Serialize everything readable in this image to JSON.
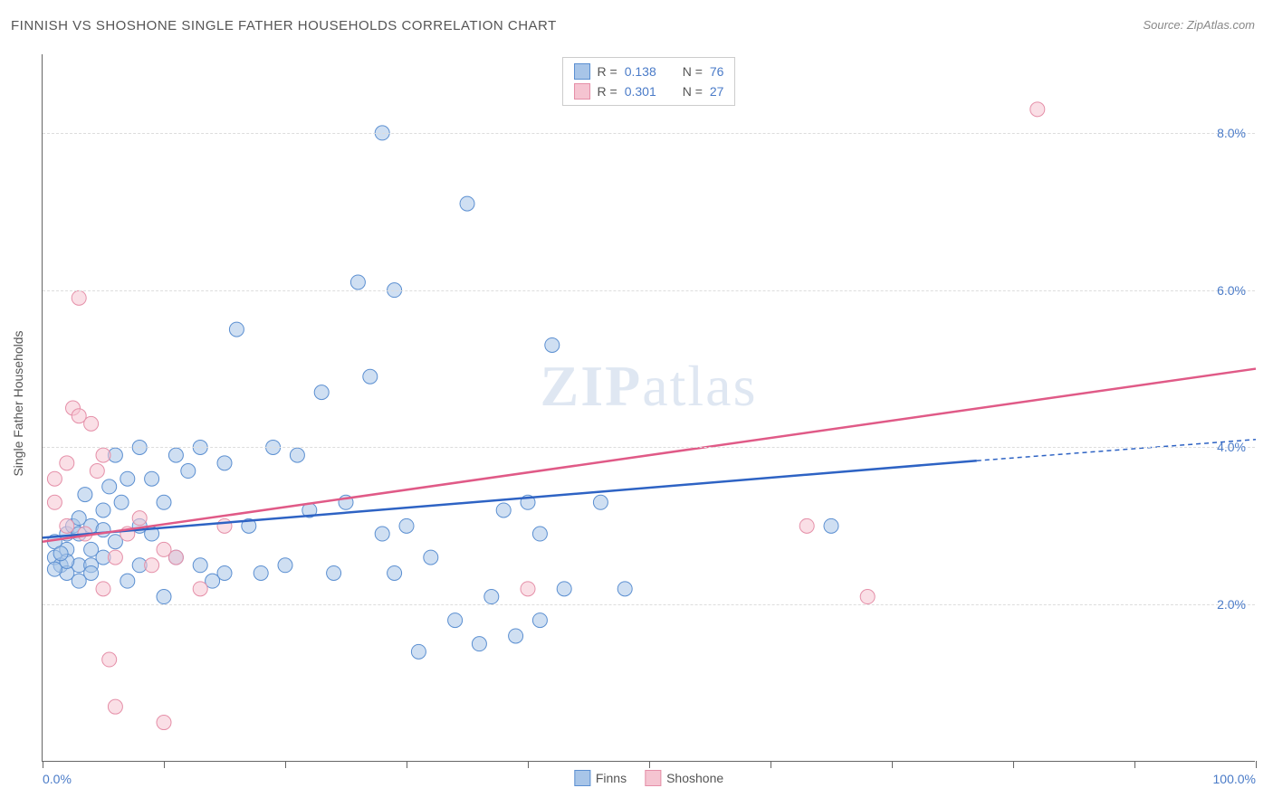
{
  "title": "FINNISH VS SHOSHONE SINGLE FATHER HOUSEHOLDS CORRELATION CHART",
  "source_label": "Source: ZipAtlas.com",
  "ylabel": "Single Father Households",
  "watermark": "ZIPatlas",
  "chart": {
    "type": "scatter",
    "xlim": [
      0,
      100
    ],
    "ylim": [
      0,
      9
    ],
    "xtick_count": 11,
    "xtick_labels_shown": {
      "0": "0.0%",
      "100": "100.0%"
    },
    "ytick_values": [
      2.0,
      4.0,
      6.0,
      8.0
    ],
    "ytick_labels": [
      "2.0%",
      "4.0%",
      "6.0%",
      "8.0%"
    ],
    "grid_color": "#dddddd",
    "axis_color": "#666666",
    "background_color": "#ffffff",
    "ytick_label_color": "#4a7bc8",
    "xtick_label_color": "#4a7bc8",
    "marker_radius": 8,
    "marker_opacity": 0.55,
    "series": [
      {
        "name": "Finns",
        "color_fill": "#a8c5e8",
        "color_stroke": "#5b8fd1",
        "trend_color": "#2e63c4",
        "R": "0.138",
        "N": "76",
        "trend_start": [
          0,
          2.85
        ],
        "trend_end_solid": [
          77,
          3.83
        ],
        "trend_end_dashed": [
          100,
          4.1
        ],
        "points": [
          [
            1,
            2.6
          ],
          [
            1,
            2.8
          ],
          [
            1.5,
            2.5
          ],
          [
            2,
            2.7
          ],
          [
            2,
            2.9
          ],
          [
            2,
            2.4
          ],
          [
            2.5,
            3.0
          ],
          [
            3,
            2.5
          ],
          [
            3,
            2.9
          ],
          [
            3,
            3.1
          ],
          [
            3.5,
            3.4
          ],
          [
            4,
            2.5
          ],
          [
            4,
            3.0
          ],
          [
            4,
            2.7
          ],
          [
            5,
            3.2
          ],
          [
            5,
            2.6
          ],
          [
            5.5,
            3.5
          ],
          [
            6,
            2.8
          ],
          [
            6,
            3.9
          ],
          [
            6.5,
            3.3
          ],
          [
            7,
            2.3
          ],
          [
            7,
            3.6
          ],
          [
            8,
            4.0
          ],
          [
            8,
            3.0
          ],
          [
            8,
            2.5
          ],
          [
            9,
            2.9
          ],
          [
            9,
            3.6
          ],
          [
            10,
            3.3
          ],
          [
            10,
            2.1
          ],
          [
            11,
            3.9
          ],
          [
            11,
            2.6
          ],
          [
            12,
            3.7
          ],
          [
            13,
            2.5
          ],
          [
            13,
            4.0
          ],
          [
            14,
            2.3
          ],
          [
            15,
            3.8
          ],
          [
            15,
            2.4
          ],
          [
            16,
            5.5
          ],
          [
            17,
            3.0
          ],
          [
            18,
            2.4
          ],
          [
            19,
            4.0
          ],
          [
            20,
            2.5
          ],
          [
            21,
            3.9
          ],
          [
            22,
            3.2
          ],
          [
            23,
            4.7
          ],
          [
            24,
            2.4
          ],
          [
            25,
            3.3
          ],
          [
            26,
            6.1
          ],
          [
            27,
            4.9
          ],
          [
            28,
            8.0
          ],
          [
            28,
            2.9
          ],
          [
            29,
            6.0
          ],
          [
            29,
            2.4
          ],
          [
            30,
            3.0
          ],
          [
            31,
            1.4
          ],
          [
            32,
            2.6
          ],
          [
            34,
            1.8
          ],
          [
            35,
            7.1
          ],
          [
            36,
            1.5
          ],
          [
            37,
            2.1
          ],
          [
            38,
            3.2
          ],
          [
            39,
            1.6
          ],
          [
            40,
            3.3
          ],
          [
            41,
            2.9
          ],
          [
            41,
            1.8
          ],
          [
            42,
            5.3
          ],
          [
            43,
            2.2
          ],
          [
            46,
            3.3
          ],
          [
            48,
            2.2
          ],
          [
            65,
            3.0
          ],
          [
            1,
            2.45
          ],
          [
            2,
            2.55
          ],
          [
            3,
            2.3
          ],
          [
            4,
            2.4
          ],
          [
            5,
            2.95
          ],
          [
            1.5,
            2.65
          ]
        ]
      },
      {
        "name": "Shoshone",
        "color_fill": "#f5c4d1",
        "color_stroke": "#e58fa8",
        "trend_color": "#e05a87",
        "R": "0.301",
        "N": "27",
        "trend_start": [
          0,
          2.8
        ],
        "trend_end_solid": [
          100,
          5.0
        ],
        "trend_end_dashed": null,
        "points": [
          [
            1,
            3.6
          ],
          [
            1,
            3.3
          ],
          [
            2,
            3.0
          ],
          [
            2,
            3.8
          ],
          [
            2.5,
            4.5
          ],
          [
            3,
            5.9
          ],
          [
            3,
            4.4
          ],
          [
            3.5,
            2.9
          ],
          [
            4,
            4.3
          ],
          [
            4.5,
            3.7
          ],
          [
            5,
            2.2
          ],
          [
            5,
            3.9
          ],
          [
            5.5,
            1.3
          ],
          [
            6,
            2.6
          ],
          [
            6,
            0.7
          ],
          [
            7,
            2.9
          ],
          [
            8,
            3.1
          ],
          [
            9,
            2.5
          ],
          [
            10,
            2.7
          ],
          [
            10,
            0.5
          ],
          [
            11,
            2.6
          ],
          [
            13,
            2.2
          ],
          [
            15,
            3.0
          ],
          [
            40,
            2.2
          ],
          [
            63,
            3.0
          ],
          [
            68,
            2.1
          ],
          [
            82,
            8.3
          ]
        ]
      }
    ],
    "legend_top": {
      "R_label": "R =",
      "N_label": "N =",
      "value_color": "#4a7bc8"
    },
    "legend_bottom": [
      {
        "label": "Finns",
        "fill": "#a8c5e8",
        "stroke": "#5b8fd1"
      },
      {
        "label": "Shoshone",
        "fill": "#f5c4d1",
        "stroke": "#e58fa8"
      }
    ]
  }
}
